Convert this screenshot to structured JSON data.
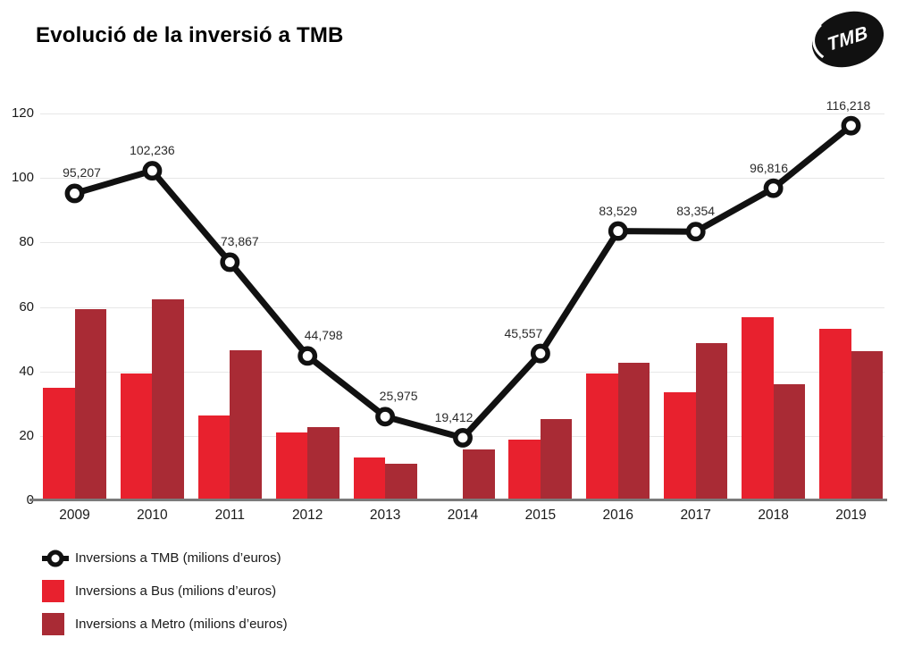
{
  "header": {
    "title": "Evolució de la inversió a TMB",
    "logo_text": "TMB"
  },
  "colors": {
    "bus": "#e8212e",
    "metro": "#a92b35",
    "line": "#111111",
    "marker_fill": "#ffffff",
    "grid": "#e7e7e7",
    "axis": "#7b7b7b",
    "text": "#1a1a1a"
  },
  "chart_data": {
    "type": "bar",
    "subtype": "grouped-bars-with-line-overlay",
    "title": "Evolució de la inversió a TMB",
    "categories": [
      "2009",
      "2010",
      "2011",
      "2012",
      "2013",
      "2014",
      "2015",
      "2016",
      "2017",
      "2018",
      "2019"
    ],
    "series": [
      {
        "name": "Inversions a TMB (milions d’euros)",
        "type": "line",
        "values": [
          95.207,
          102.236,
          73.867,
          44.798,
          25.975,
          19.412,
          45.557,
          83.529,
          83.354,
          96.816,
          116.218
        ],
        "point_labels": [
          "95,207",
          "102,236",
          "73,867",
          "44,798",
          "25,975",
          "19,412",
          "45,557",
          "83,529",
          "83,354",
          "96,816",
          "116,218"
        ]
      },
      {
        "name": "Inversions a Bus (milions d’euros)",
        "type": "bar",
        "values": [
          35.0,
          39.3,
          26.2,
          21.0,
          13.4,
          0,
          18.9,
          39.4,
          33.5,
          56.8,
          53.2
        ]
      },
      {
        "name": "Inversions a Metro (milions d’euros)",
        "type": "bar",
        "values": [
          59.2,
          62.3,
          46.6,
          22.6,
          11.3,
          15.9,
          25.1,
          42.8,
          48.7,
          36.0,
          46.3
        ]
      }
    ],
    "xlabel": "",
    "ylabel": "",
    "y_ticks": [
      0,
      20,
      40,
      60,
      80,
      100,
      120
    ],
    "ylim": [
      0,
      120
    ],
    "grid": true,
    "legend_position": "bottom-left",
    "label_dx": [
      8,
      0,
      11,
      18,
      15,
      -10,
      -19,
      0,
      0,
      -5,
      -3
    ]
  }
}
